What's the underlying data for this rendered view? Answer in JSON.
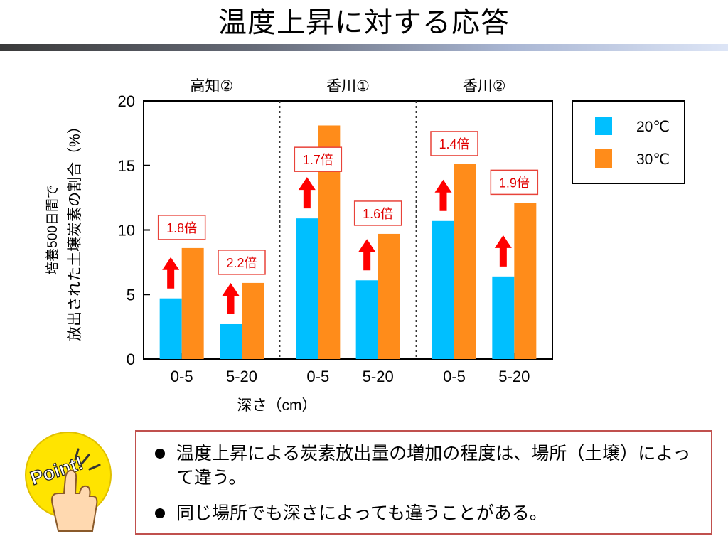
{
  "slide": {
    "title": "温度上昇に対する応答",
    "bullets": [
      "温度上昇による炭素放出量の増加の程度は、場所（土壌）によって違う。",
      "同じ場所でも深さによっても違うことがある。"
    ],
    "badge_text": "Point!"
  },
  "colors": {
    "series_20": "#00bfff",
    "series_30": "#ff8c1a",
    "arrow": "#ff0000",
    "ratio_border": "#e8433a",
    "box_border": "#c0504d"
  },
  "chart_data": {
    "type": "bar",
    "ylabel_line1": "培養500日間で",
    "ylabel_line2": "放出された土壌炭素の割合（%）",
    "xlabel": "深さ（cm）",
    "ylim": [
      0,
      20
    ],
    "yticks": [
      0,
      5,
      10,
      15,
      20
    ],
    "legend_position": "top-right",
    "series": [
      {
        "name": "20℃",
        "color": "#00bfff"
      },
      {
        "name": "30℃",
        "color": "#ff8c1a"
      }
    ],
    "groups": [
      {
        "site": "高知②",
        "depths": [
          {
            "label": "0-5",
            "values": [
              4.7,
              8.6
            ],
            "ratio": "1.8倍"
          },
          {
            "label": "5-20",
            "values": [
              2.7,
              5.9
            ],
            "ratio": "2.2倍"
          }
        ]
      },
      {
        "site": "香川①",
        "depths": [
          {
            "label": "0-5",
            "values": [
              10.9,
              18.1
            ],
            "ratio": "1.7倍"
          },
          {
            "label": "5-20",
            "values": [
              6.1,
              9.7
            ],
            "ratio": "1.6倍"
          }
        ]
      },
      {
        "site": "香川②",
        "depths": [
          {
            "label": "0-5",
            "values": [
              10.7,
              15.1
            ],
            "ratio": "1.4倍"
          },
          {
            "label": "5-20",
            "values": [
              6.4,
              12.1
            ],
            "ratio": "1.9倍"
          }
        ]
      }
    ]
  }
}
